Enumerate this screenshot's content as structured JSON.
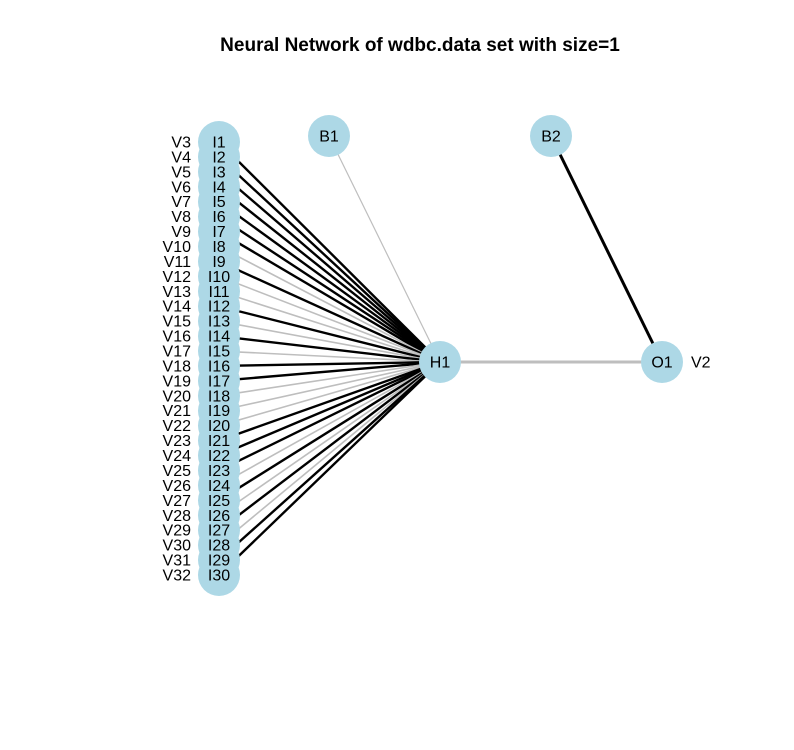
{
  "title": "Neural Network of wdbc.data set with size=1",
  "node_color": "#add8e6",
  "positive_weight_color": "#000000",
  "negative_weight_color": "#bebebe",
  "inputs": [
    {
      "id": "I1",
      "var": "V3",
      "sign": "positive"
    },
    {
      "id": "I2",
      "var": "V4",
      "sign": "positive"
    },
    {
      "id": "I3",
      "var": "V5",
      "sign": "positive"
    },
    {
      "id": "I4",
      "var": "V6",
      "sign": "positive"
    },
    {
      "id": "I5",
      "var": "V7",
      "sign": "positive"
    },
    {
      "id": "I6",
      "var": "V8",
      "sign": "positive"
    },
    {
      "id": "I7",
      "var": "V9",
      "sign": "positive"
    },
    {
      "id": "I8",
      "var": "V10",
      "sign": "negative"
    },
    {
      "id": "I9",
      "var": "V11",
      "sign": "positive"
    },
    {
      "id": "I10",
      "var": "V12",
      "sign": "negative"
    },
    {
      "id": "I11",
      "var": "V13",
      "sign": "negative"
    },
    {
      "id": "I12",
      "var": "V14",
      "sign": "positive"
    },
    {
      "id": "I13",
      "var": "V15",
      "sign": "negative"
    },
    {
      "id": "I14",
      "var": "V16",
      "sign": "positive"
    },
    {
      "id": "I15",
      "var": "V17",
      "sign": "negative"
    },
    {
      "id": "I16",
      "var": "V18",
      "sign": "positive"
    },
    {
      "id": "I17",
      "var": "V19",
      "sign": "positive"
    },
    {
      "id": "I18",
      "var": "V20",
      "sign": "negative"
    },
    {
      "id": "I19",
      "var": "V21",
      "sign": "negative"
    },
    {
      "id": "I20",
      "var": "V22",
      "sign": "negative"
    },
    {
      "id": "I21",
      "var": "V23",
      "sign": "positive"
    },
    {
      "id": "I22",
      "var": "V24",
      "sign": "positive"
    },
    {
      "id": "I23",
      "var": "V25",
      "sign": "positive"
    },
    {
      "id": "I24",
      "var": "V26",
      "sign": "negative"
    },
    {
      "id": "I25",
      "var": "V27",
      "sign": "positive"
    },
    {
      "id": "I26",
      "var": "V28",
      "sign": "negative"
    },
    {
      "id": "I27",
      "var": "V29",
      "sign": "positive"
    },
    {
      "id": "I28",
      "var": "V30",
      "sign": "negative"
    },
    {
      "id": "I29",
      "var": "V31",
      "sign": "positive"
    },
    {
      "id": "I30",
      "var": "V32",
      "sign": "positive"
    }
  ],
  "bias_nodes": [
    {
      "id": "B1",
      "target": "H1",
      "sign": "negative"
    },
    {
      "id": "B2",
      "target": "O1",
      "sign": "positive"
    }
  ],
  "hidden_nodes": [
    {
      "id": "H1"
    }
  ],
  "output_nodes": [
    {
      "id": "O1",
      "var": "V2"
    }
  ],
  "hidden_output_edges": [
    {
      "from": "H1",
      "to": "O1",
      "sign": "negative"
    }
  ]
}
